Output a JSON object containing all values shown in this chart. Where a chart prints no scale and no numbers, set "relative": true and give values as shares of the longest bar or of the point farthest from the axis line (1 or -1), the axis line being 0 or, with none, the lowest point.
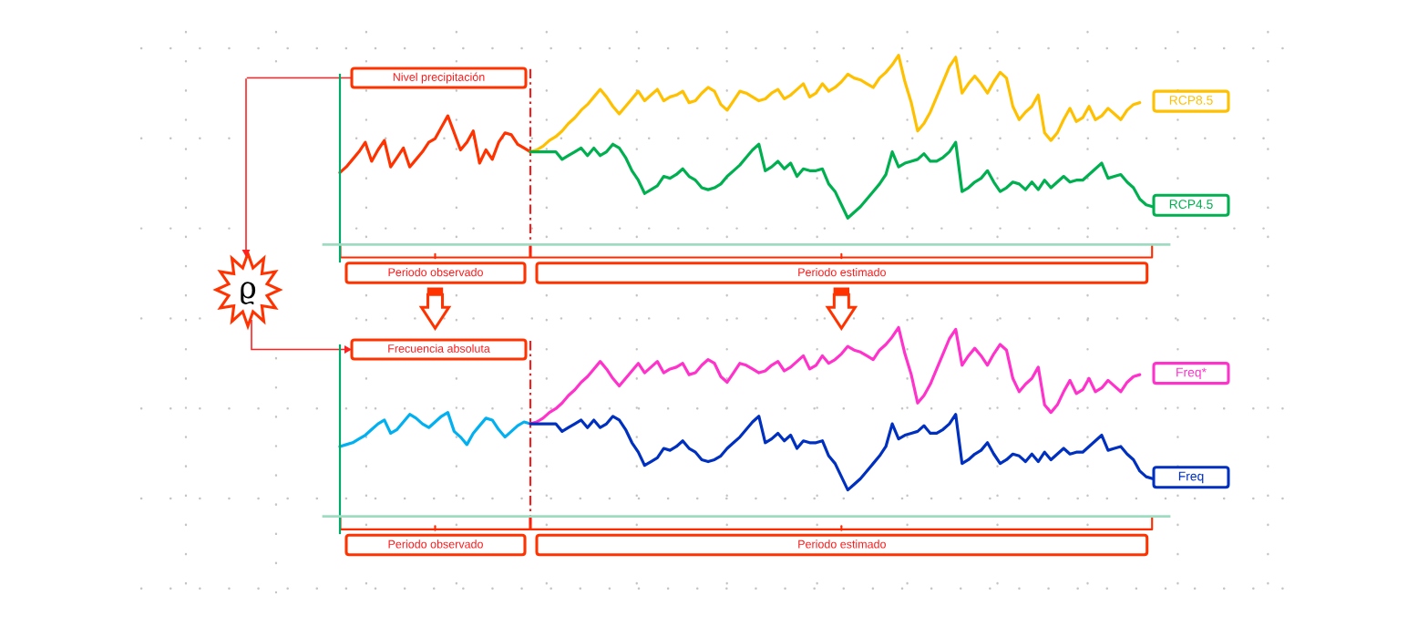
{
  "chart_data": [
    {
      "type": "line",
      "relative": true,
      "ylabel": "Nivel precipitación",
      "grid": true,
      "categories": [
        null,
        null,
        null,
        null,
        null,
        null,
        null,
        null,
        null,
        null,
        null,
        null,
        null,
        null,
        null,
        null,
        null,
        null,
        null,
        null,
        null,
        null,
        null,
        null,
        null,
        null,
        null,
        null,
        null,
        null,
        null,
        null,
        null,
        null,
        null,
        null,
        null,
        null,
        null,
        null,
        null,
        null,
        null,
        null,
        null,
        null,
        null,
        null,
        null,
        null,
        null,
        null,
        null,
        null,
        null,
        null,
        null,
        null,
        null,
        null,
        null,
        null,
        null,
        null,
        null,
        null,
        null,
        null,
        null,
        null,
        null,
        null,
        null,
        null,
        null,
        null,
        null,
        null,
        null,
        null,
        null,
        null,
        null,
        null,
        null,
        null,
        null,
        null,
        null,
        null,
        null,
        null,
        null,
        null,
        null,
        null,
        null,
        null,
        null,
        null,
        null,
        null,
        null,
        null,
        null,
        null,
        null,
        null,
        null,
        null,
        null,
        null,
        null,
        null,
        null,
        null,
        null,
        null,
        null,
        null,
        null,
        null,
        null,
        null,
        null,
        null,
        null,
        null,
        null
      ],
      "series": [
        {
          "color": "#ff3300",
          "values": [
            0.38,
            0.41,
            0.45,
            0.49,
            0.54,
            0.44,
            0.5,
            0.55,
            0.41,
            0.46,
            0.51,
            0.41,
            0.45,
            0.49,
            0.54,
            0.56,
            0.62,
            0.68,
            0.59,
            0.5,
            0.54,
            0.6,
            0.43,
            0.5,
            0.45,
            0.54,
            0.59,
            0.58,
            0.53,
            0.51,
            0.49,
            null,
            null,
            null,
            null,
            null,
            null,
            null,
            null,
            null,
            null,
            null,
            null,
            null,
            null,
            null,
            null,
            null,
            null,
            null,
            null,
            null,
            null,
            null,
            null,
            null,
            null,
            null,
            null,
            null,
            null,
            null,
            null,
            null,
            null,
            null,
            null,
            null,
            null,
            null,
            null,
            null,
            null,
            null,
            null,
            null,
            null,
            null,
            null,
            null,
            null,
            null,
            null,
            null,
            null,
            null,
            null,
            null,
            null,
            null,
            null,
            null,
            null,
            null,
            null,
            null,
            null,
            null,
            null,
            null,
            null,
            null,
            null,
            null,
            null,
            null,
            null,
            null,
            null,
            null,
            null,
            null,
            null,
            null,
            null,
            null,
            null,
            null,
            null,
            null,
            null,
            null,
            null,
            null,
            null,
            null,
            null,
            null,
            null
          ]
        },
        {
          "name": "RCP8.5",
          "color": "#ffc000",
          "values": [
            null,
            null,
            null,
            null,
            null,
            null,
            null,
            null,
            null,
            null,
            null,
            null,
            null,
            null,
            null,
            null,
            null,
            null,
            null,
            null,
            null,
            null,
            null,
            null,
            null,
            null,
            null,
            null,
            null,
            null,
            0.49,
            0.5,
            0.52,
            0.55,
            0.57,
            0.6,
            0.64,
            0.67,
            0.71,
            0.74,
            0.78,
            0.82,
            0.78,
            0.73,
            0.69,
            0.73,
            0.77,
            0.81,
            0.76,
            0.79,
            0.82,
            0.76,
            0.78,
            0.79,
            0.81,
            0.75,
            0.76,
            0.8,
            0.83,
            0.81,
            0.74,
            0.71,
            0.76,
            0.81,
            0.8,
            0.78,
            0.76,
            0.77,
            0.8,
            0.82,
            0.77,
            0.79,
            0.82,
            0.85,
            0.78,
            0.8,
            0.85,
            0.81,
            0.83,
            0.86,
            0.9,
            0.88,
            0.87,
            0.85,
            0.83,
            0.88,
            0.91,
            0.95,
            1.0,
            0.86,
            0.75,
            0.6,
            0.64,
            0.7,
            0.78,
            0.86,
            0.94,
            0.99,
            0.8,
            0.85,
            0.89,
            0.85,
            0.8,
            0.86,
            0.91,
            0.88,
            0.73,
            0.66,
            0.7,
            0.73,
            0.79,
            0.59,
            0.55,
            0.59,
            0.66,
            0.72,
            0.65,
            0.67,
            0.73,
            0.66,
            0.68,
            0.72,
            0.69,
            0.66,
            0.71,
            0.74,
            0.75,
            null,
            null
          ]
        },
        {
          "name": "RCP4.5",
          "color": "#00b050",
          "values": [
            null,
            null,
            null,
            null,
            null,
            null,
            null,
            null,
            null,
            null,
            null,
            null,
            null,
            null,
            null,
            null,
            null,
            null,
            null,
            null,
            null,
            null,
            null,
            null,
            null,
            null,
            null,
            null,
            null,
            null,
            0.49,
            0.49,
            0.49,
            0.49,
            0.49,
            0.45,
            0.47,
            0.49,
            0.51,
            0.47,
            0.51,
            0.47,
            0.49,
            0.53,
            0.51,
            0.46,
            0.39,
            0.34,
            0.27,
            0.29,
            0.31,
            0.36,
            0.35,
            0.37,
            0.4,
            0.36,
            0.34,
            0.3,
            0.29,
            0.3,
            0.32,
            0.36,
            0.39,
            0.42,
            0.46,
            0.5,
            0.53,
            0.39,
            0.41,
            0.44,
            0.4,
            0.43,
            0.36,
            0.4,
            0.39,
            0.39,
            0.4,
            0.32,
            0.28,
            0.21,
            0.14,
            0.17,
            0.2,
            0.24,
            0.28,
            0.32,
            0.37,
            0.49,
            0.41,
            0.43,
            0.44,
            0.45,
            0.48,
            0.44,
            0.44,
            0.46,
            0.49,
            0.54,
            0.28,
            0.3,
            0.33,
            0.35,
            0.39,
            0.33,
            0.28,
            0.3,
            0.33,
            0.32,
            0.29,
            0.33,
            0.29,
            0.34,
            0.3,
            0.33,
            0.36,
            0.33,
            0.34,
            0.34,
            0.37,
            0.4,
            0.43,
            0.35,
            0.36,
            0.37,
            0.33,
            0.3,
            0.24,
            0.21,
            0.2
          ]
        }
      ],
      "annotations": [
        "Periodo observado",
        "Periodo estimado",
        "ϱ"
      ]
    },
    {
      "type": "line",
      "relative": true,
      "ylabel": "Frecuencia absoluta",
      "grid": true,
      "categories": [
        null,
        null,
        null,
        null,
        null,
        null,
        null,
        null,
        null,
        null,
        null,
        null,
        null,
        null,
        null,
        null,
        null,
        null,
        null,
        null,
        null,
        null,
        null,
        null,
        null,
        null,
        null,
        null,
        null,
        null,
        null,
        null,
        null,
        null,
        null,
        null,
        null,
        null,
        null,
        null,
        null,
        null,
        null,
        null,
        null,
        null,
        null,
        null,
        null,
        null,
        null,
        null,
        null,
        null,
        null,
        null,
        null,
        null,
        null,
        null,
        null,
        null,
        null,
        null,
        null,
        null,
        null,
        null,
        null,
        null,
        null,
        null,
        null,
        null,
        null,
        null,
        null,
        null,
        null,
        null,
        null,
        null,
        null,
        null,
        null,
        null,
        null,
        null,
        null,
        null,
        null,
        null,
        null,
        null,
        null,
        null,
        null,
        null,
        null,
        null,
        null,
        null,
        null,
        null,
        null,
        null,
        null,
        null,
        null,
        null,
        null,
        null,
        null,
        null,
        null,
        null,
        null,
        null,
        null,
        null,
        null,
        null,
        null,
        null,
        null,
        null,
        null,
        null,
        null
      ],
      "series": [
        {
          "color": "#00b0f0",
          "values": [
            0.37,
            0.38,
            0.39,
            0.41,
            0.43,
            0.46,
            0.49,
            0.51,
            0.44,
            0.46,
            0.5,
            0.54,
            0.52,
            0.49,
            0.47,
            0.5,
            0.53,
            0.55,
            0.45,
            0.42,
            0.38,
            0.44,
            0.48,
            0.52,
            0.51,
            0.46,
            0.42,
            0.45,
            0.48,
            0.5,
            0.49,
            null,
            null,
            null,
            null,
            null,
            null,
            null,
            null,
            null,
            null,
            null,
            null,
            null,
            null,
            null,
            null,
            null,
            null,
            null,
            null,
            null,
            null,
            null,
            null,
            null,
            null,
            null,
            null,
            null,
            null,
            null,
            null,
            null,
            null,
            null,
            null,
            null,
            null,
            null,
            null,
            null,
            null,
            null,
            null,
            null,
            null,
            null,
            null,
            null,
            null,
            null,
            null,
            null,
            null,
            null,
            null,
            null,
            null,
            null,
            null,
            null,
            null,
            null,
            null,
            null,
            null,
            null,
            null,
            null,
            null,
            null,
            null,
            null,
            null,
            null,
            null,
            null,
            null,
            null,
            null,
            null,
            null,
            null,
            null,
            null,
            null,
            null,
            null,
            null,
            null,
            null,
            null,
            null,
            null,
            null,
            null,
            null,
            null
          ]
        },
        {
          "name": "Freq*",
          "color": "#ff33cc",
          "values": [
            null,
            null,
            null,
            null,
            null,
            null,
            null,
            null,
            null,
            null,
            null,
            null,
            null,
            null,
            null,
            null,
            null,
            null,
            null,
            null,
            null,
            null,
            null,
            null,
            null,
            null,
            null,
            null,
            null,
            null,
            0.49,
            0.5,
            0.52,
            0.55,
            0.57,
            0.6,
            0.64,
            0.67,
            0.71,
            0.74,
            0.78,
            0.82,
            0.78,
            0.73,
            0.69,
            0.73,
            0.77,
            0.81,
            0.76,
            0.79,
            0.82,
            0.76,
            0.78,
            0.79,
            0.81,
            0.75,
            0.76,
            0.8,
            0.83,
            0.81,
            0.74,
            0.71,
            0.76,
            0.81,
            0.8,
            0.78,
            0.76,
            0.77,
            0.8,
            0.82,
            0.77,
            0.79,
            0.82,
            0.85,
            0.78,
            0.8,
            0.85,
            0.81,
            0.83,
            0.86,
            0.9,
            0.88,
            0.87,
            0.85,
            0.83,
            0.88,
            0.91,
            0.95,
            1.0,
            0.86,
            0.75,
            0.6,
            0.64,
            0.7,
            0.78,
            0.86,
            0.94,
            0.99,
            0.8,
            0.85,
            0.89,
            0.85,
            0.8,
            0.86,
            0.91,
            0.88,
            0.73,
            0.66,
            0.7,
            0.73,
            0.79,
            0.59,
            0.55,
            0.59,
            0.66,
            0.72,
            0.65,
            0.67,
            0.73,
            0.66,
            0.68,
            0.72,
            0.69,
            0.66,
            0.71,
            0.74,
            0.75,
            null,
            null
          ]
        },
        {
          "name": "Freq",
          "color": "#0030c0",
          "values": [
            null,
            null,
            null,
            null,
            null,
            null,
            null,
            null,
            null,
            null,
            null,
            null,
            null,
            null,
            null,
            null,
            null,
            null,
            null,
            null,
            null,
            null,
            null,
            null,
            null,
            null,
            null,
            null,
            null,
            null,
            0.49,
            0.49,
            0.49,
            0.49,
            0.49,
            0.45,
            0.47,
            0.49,
            0.51,
            0.47,
            0.51,
            0.47,
            0.49,
            0.53,
            0.51,
            0.46,
            0.39,
            0.34,
            0.27,
            0.29,
            0.31,
            0.36,
            0.35,
            0.37,
            0.4,
            0.36,
            0.34,
            0.3,
            0.29,
            0.3,
            0.32,
            0.36,
            0.39,
            0.42,
            0.46,
            0.5,
            0.53,
            0.39,
            0.41,
            0.44,
            0.4,
            0.43,
            0.36,
            0.4,
            0.39,
            0.39,
            0.4,
            0.32,
            0.28,
            0.21,
            0.14,
            0.17,
            0.2,
            0.24,
            0.28,
            0.32,
            0.37,
            0.49,
            0.41,
            0.43,
            0.44,
            0.45,
            0.48,
            0.44,
            0.44,
            0.46,
            0.49,
            0.54,
            0.28,
            0.3,
            0.33,
            0.35,
            0.39,
            0.33,
            0.28,
            0.3,
            0.33,
            0.32,
            0.29,
            0.33,
            0.29,
            0.34,
            0.3,
            0.33,
            0.36,
            0.33,
            0.34,
            0.34,
            0.37,
            0.4,
            0.43,
            0.35,
            0.36,
            0.37,
            0.33,
            0.3,
            0.24,
            0.21,
            0.2
          ]
        }
      ],
      "annotations": [
        "Periodo observado",
        "Periodo estimado"
      ]
    }
  ]
}
